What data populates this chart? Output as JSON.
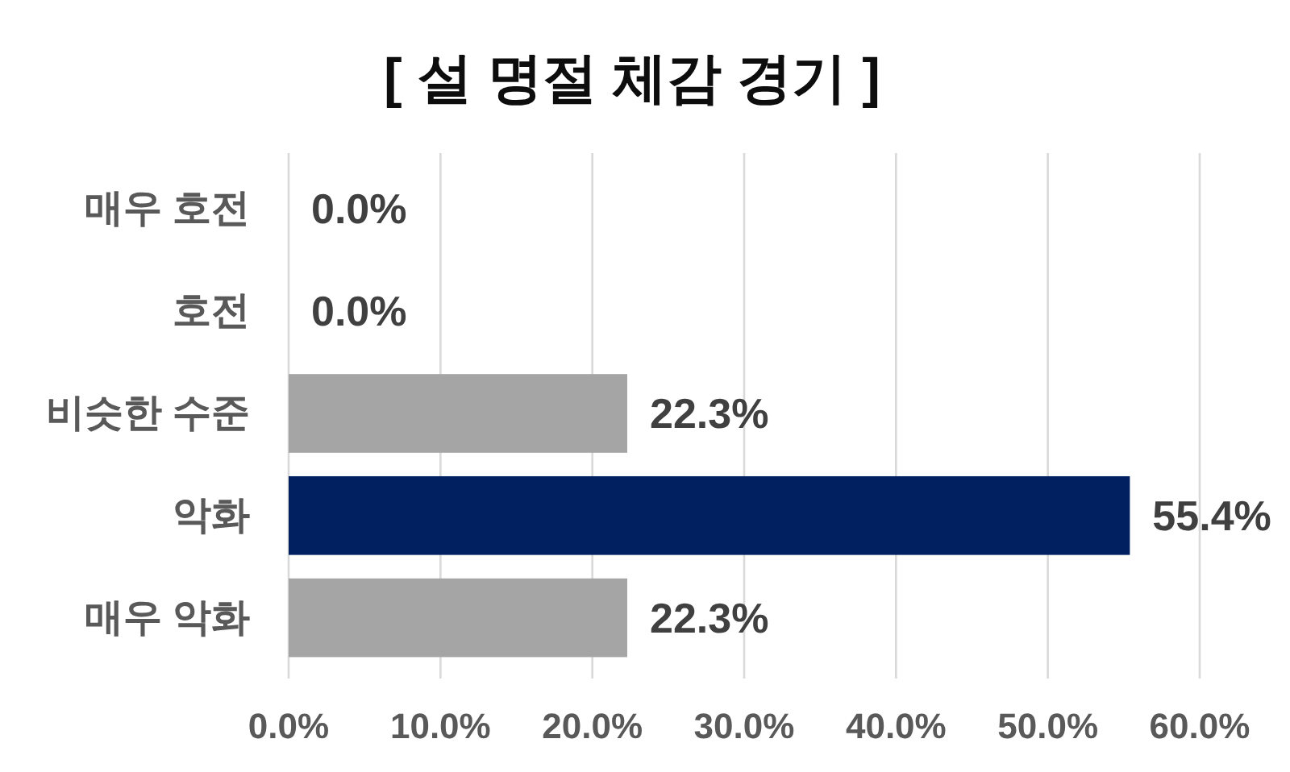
{
  "chart_data": {
    "type": "bar",
    "orientation": "horizontal",
    "title": "[ 설 명절 체감 경기 ]",
    "categories": [
      "매우 호전",
      "호전",
      "비슷한 수준",
      "악화",
      "매우 악화"
    ],
    "values": [
      0,
      0,
      22.3,
      55.4,
      22.3
    ],
    "colors": [
      "#a5a5a5",
      "#a5a5a5",
      "#a5a5a5",
      "#002060",
      "#a5a5a5"
    ],
    "value_labels": [
      "0.0%",
      "0.0%",
      "22.3%",
      "55.4%",
      "22.3%"
    ],
    "xlim": [
      0,
      60
    ],
    "xticks": [
      {
        "value": 0,
        "label": "0.0%"
      },
      {
        "value": 10,
        "label": "10.0%"
      },
      {
        "value": 20,
        "label": "20.0%"
      },
      {
        "value": 30,
        "label": "30.0%"
      },
      {
        "value": 40,
        "label": "40.0%"
      },
      {
        "value": 50,
        "label": "50.0%"
      },
      {
        "value": 60,
        "label": "60.0%"
      }
    ],
    "grid": "x"
  }
}
